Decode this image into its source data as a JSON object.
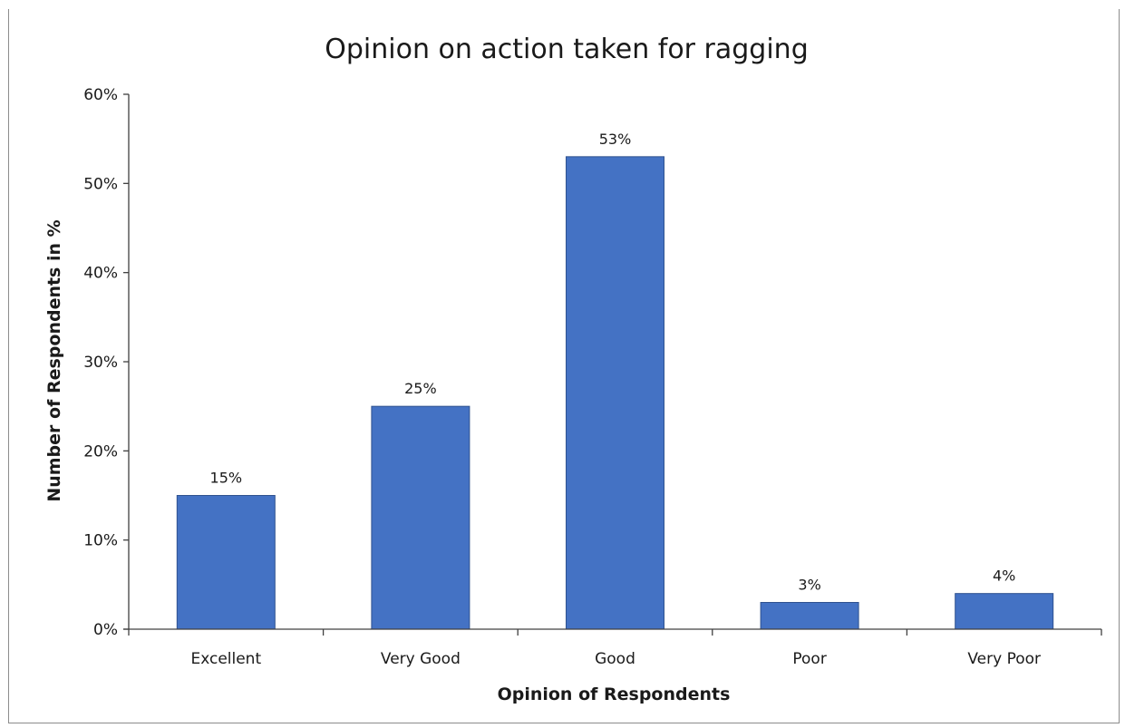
{
  "chart_data": {
    "type": "bar",
    "title": "Opinion on action taken for ragging",
    "xlabel": "Opinion of Respondents",
    "ylabel": "Number of Respondents in %",
    "categories": [
      "Excellent",
      "Very Good",
      "Good",
      "Poor",
      "Very Poor"
    ],
    "values": [
      15,
      25,
      53,
      3,
      4
    ],
    "data_labels": [
      "15%",
      "25%",
      "53%",
      "3%",
      "4%"
    ],
    "ylim": [
      0,
      60
    ],
    "yticks": [
      0,
      10,
      20,
      30,
      40,
      50,
      60
    ],
    "ytick_labels": [
      "0%",
      "10%",
      "20%",
      "30%",
      "40%",
      "50%",
      "60%"
    ],
    "bar_color": "#4472c4",
    "bar_edge_color": "#2f528f",
    "grid": false,
    "legend": "none"
  }
}
